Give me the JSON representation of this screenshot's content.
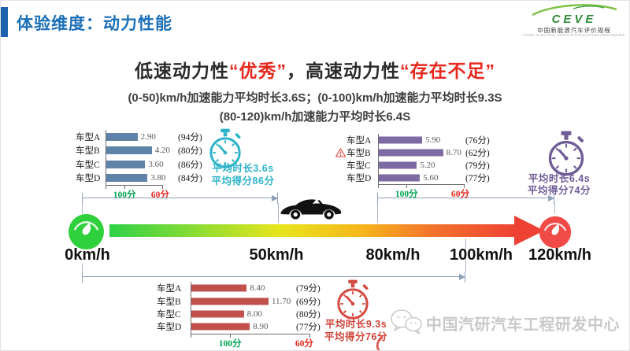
{
  "header": {
    "title": "体验维度：动力性能"
  },
  "logo": {
    "name": "CEVE",
    "sub_cn": "中国新能源汽车评价规程",
    "sub_en": "CHINA ELECTRIC VEHICLE EVALUATION PROCEDURE"
  },
  "headline": {
    "part1": "低速动力性",
    "quote1": "“优秀”",
    "sep": "，",
    "part2": "高速动力性",
    "quote2": "“存在不足”"
  },
  "subtitle": {
    "line1": "(0-50)km/h加速能力平均时长3.6S；(0-100)km/h加速能力平均时长9.3S",
    "line2": "(80-120)km/h加速能力平均时长6.4S"
  },
  "chart_data": [
    {
      "type": "bar",
      "title": "(0-50)km/h加速能力平均时长",
      "range_km_h": [
        0,
        50
      ],
      "categories": [
        "车型A",
        "车型B",
        "车型C",
        "车型D"
      ],
      "values": [
        2.9,
        4.2,
        3.6,
        3.8
      ],
      "value_labels": [
        "2.90",
        "4.20",
        "3.60",
        "3.80"
      ],
      "scores": [
        "(94分)",
        "(80分)",
        "(86分)",
        "(84分)"
      ],
      "axis_left": "100分",
      "axis_right": "60分",
      "avg_line1": "平均时长3.6s",
      "avg_line2": "平均得分86分",
      "color": "#5e82a8",
      "accent": "#2cb3c7",
      "warning_index": null
    },
    {
      "type": "bar",
      "title": "(80-120)km/h加速能力平均时长",
      "range_km_h": [
        80,
        120
      ],
      "categories": [
        "车型A",
        "车型B",
        "车型C",
        "车型D"
      ],
      "values": [
        5.9,
        8.7,
        5.2,
        5.6
      ],
      "value_labels": [
        "5.90",
        "8.70",
        "5.20",
        "5.60"
      ],
      "scores": [
        "(76分)",
        "(62分)",
        "(79分)",
        "(77分)"
      ],
      "axis_left": "100分",
      "axis_right": "60分",
      "avg_line1": "平均时长6.4s",
      "avg_line2": "平均得分74分",
      "color": "#7e6aa2",
      "accent": "#6f5b96",
      "warning_index": 1
    },
    {
      "type": "bar",
      "title": "(0-100)km/h加速能力平均时长",
      "range_km_h": [
        0,
        100
      ],
      "categories": [
        "车型A",
        "车型B",
        "车型C",
        "车型D"
      ],
      "values": [
        8.4,
        11.7,
        8.0,
        8.9
      ],
      "value_labels": [
        "8.40",
        "11.70",
        "8.00",
        "8.90"
      ],
      "scores": [
        "(79分)",
        "(69分)",
        "(80分)",
        "(77分)"
      ],
      "axis_left": "100分",
      "axis_right": "60分",
      "avg_line1": "平均时长9.3s",
      "avg_line2": "平均得分76分",
      "color": "#c1504c",
      "accent": "#cf4338",
      "warning_index": null
    }
  ],
  "speed_axis": {
    "labels": [
      "0km/h",
      "50km/h",
      "80km/h",
      "100km/h",
      "120km/h"
    ],
    "gradient": [
      "#2fd148",
      "#e8e51c",
      "#f6b61c",
      "#ee4134"
    ]
  },
  "footer": {
    "text": "中国汽研汽车工程研发中心"
  }
}
